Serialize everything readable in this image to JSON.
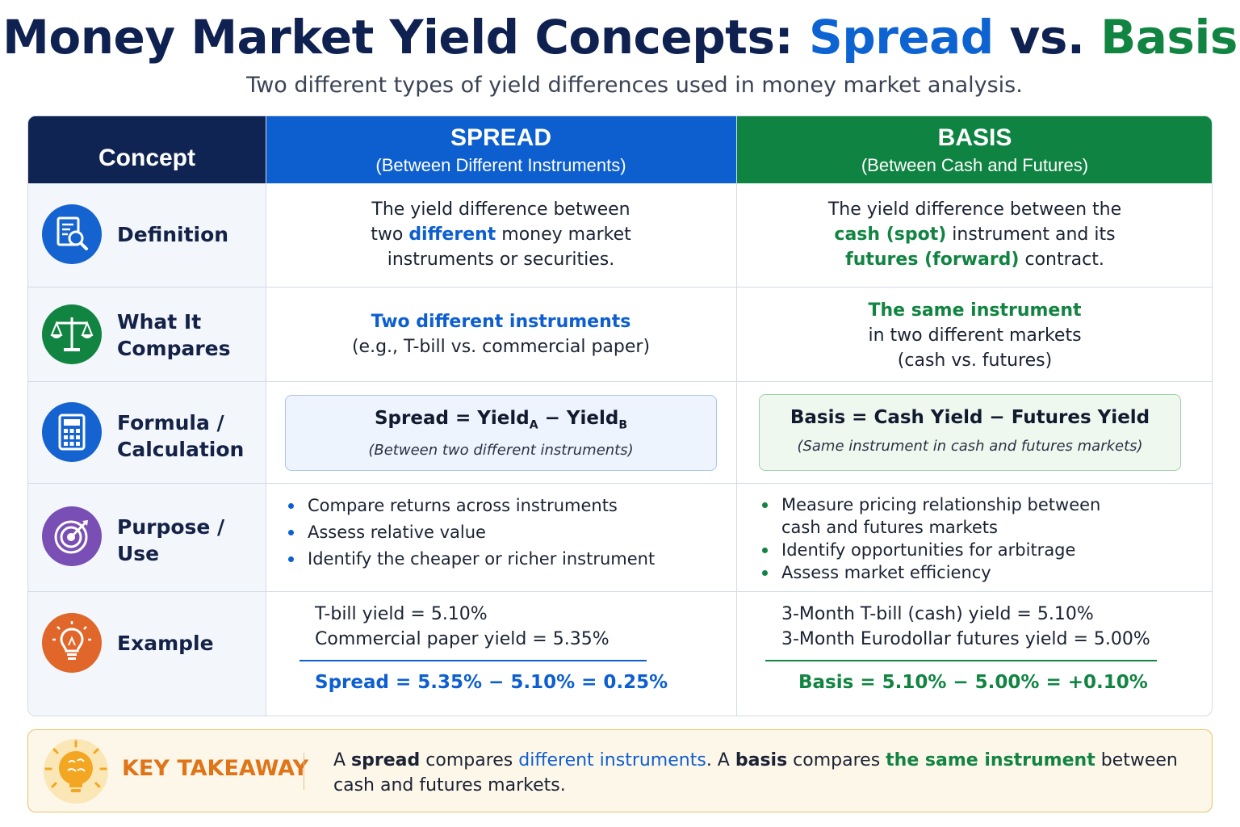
{
  "title": {
    "part1": "Money Market Yield Concepts: ",
    "spread": "Spread",
    "vs": " vs. ",
    "basis": "Basis"
  },
  "subtitle": "Two different types of yield differences used in money market analysis.",
  "headers": {
    "concept": "Concept",
    "spread": {
      "title": "SPREAD",
      "subtitle": "(Between Different Instruments)"
    },
    "basis": {
      "title": "BASIS",
      "subtitle": "(Between Cash and Futures)"
    }
  },
  "rows": {
    "definition": {
      "label": "Definition",
      "icon": "document-search-icon",
      "spread": {
        "t1": "The yield difference between",
        "t2a": "two ",
        "t2b": "different",
        "t2c": " money market",
        "t3": "instruments or securities."
      },
      "basis": {
        "t1": "The yield difference between the",
        "t2a": "cash (spot)",
        "t2b": " instrument and its",
        "t3a": "futures (forward)",
        "t3b": " contract."
      }
    },
    "compares": {
      "label1": "What It",
      "label2": "Compares",
      "icon": "balance-scale-icon",
      "spread": {
        "t1": "Two different instruments",
        "t2": "(e.g., T-bill vs. commercial paper)"
      },
      "basis": {
        "t1": "The same instrument",
        "t2": "in two different markets",
        "t3": "(cash vs. futures)"
      }
    },
    "formula": {
      "label1": "Formula /",
      "label2": "Calculation",
      "icon": "calculator-icon",
      "spread": {
        "lhs": "Spread = Yield",
        "subA": "A",
        "mid": " − Yield",
        "subB": "B",
        "note": "(Between two different instruments)"
      },
      "basis": {
        "main": "Basis  =  Cash Yield − Futures Yield",
        "note": "(Same instrument in cash and futures markets)"
      }
    },
    "purpose": {
      "label1": "Purpose /",
      "label2": "Use",
      "icon": "target-icon",
      "spread": [
        "Compare returns across instruments",
        "Assess relative value",
        "Identify the cheaper or richer instrument"
      ],
      "basis": [
        "Measure pricing relationship between",
        "cash and futures markets",
        "Identify opportunities for arbitrage",
        "Assess market efficiency"
      ]
    },
    "example": {
      "label": "Example",
      "icon": "lightbulb-icon",
      "spread": {
        "l1": "T-bill yield = 5.10%",
        "l2": "Commercial paper yield = 5.35%",
        "result": "Spread = 5.35% − 5.10% = 0.25%"
      },
      "basis": {
        "l1": "3-Month T-bill (cash) yield = 5.10%",
        "l2": "3-Month Eurodollar futures yield = 5.00%",
        "result": "Basis  =  5.10% − 5.00% = +0.10%"
      }
    }
  },
  "takeaway": {
    "title": "KEY TAKEAWAY",
    "icon": "brain-lightbulb-icon",
    "p1": "A ",
    "p2": "spread",
    "p3": " compares ",
    "p4": "different instruments",
    "p5": ".  A  ",
    "p6": "basis",
    "p7": " compares ",
    "p8": "the same instrument",
    "p9": " between cash and futures markets."
  },
  "colors": {
    "navy": "#0f2452",
    "blue": "#0d5fcf",
    "green": "#128442",
    "orange": "#e07418",
    "purple": "#7a4fb5"
  }
}
